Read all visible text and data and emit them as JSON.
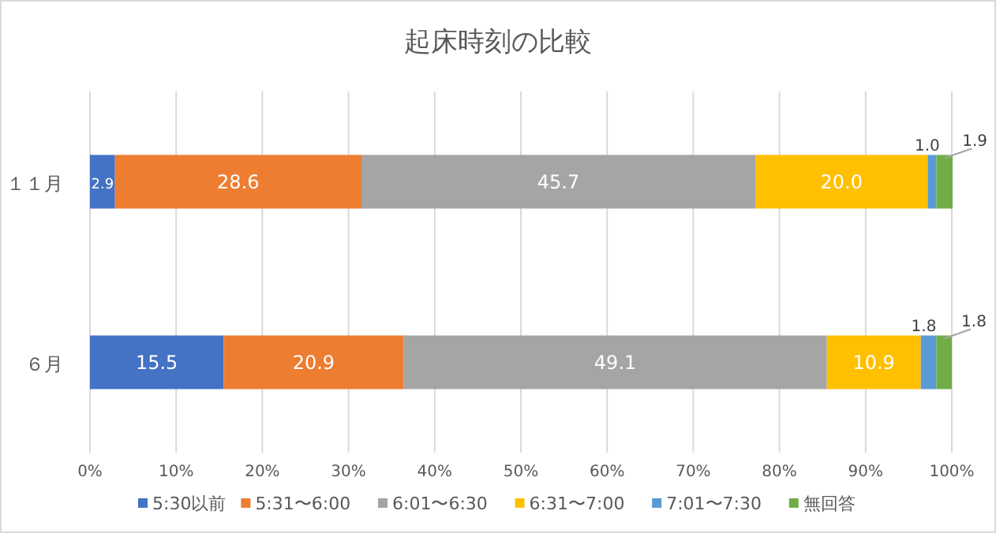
{
  "chart_data": {
    "type": "bar",
    "orientation": "horizontal",
    "stacked": true,
    "title": "起床時刻の比較",
    "categories": [
      "１１月",
      "６月"
    ],
    "series": [
      {
        "name": "5:30以前",
        "color": "#4472c4",
        "values": [
          2.9,
          15.5
        ],
        "value_labels": [
          "2.9",
          "15.5"
        ]
      },
      {
        "name": "5:31〜6:00",
        "color": "#ed7d31",
        "values": [
          28.6,
          20.9
        ],
        "value_labels": [
          "28.6",
          "20.9"
        ]
      },
      {
        "name": "6:01〜6:30",
        "color": "#a5a5a5",
        "values": [
          45.7,
          49.1
        ],
        "value_labels": [
          "45.7",
          "49.1"
        ]
      },
      {
        "name": "6:31〜7:00",
        "color": "#ffc000",
        "values": [
          20.0,
          10.9
        ],
        "value_labels": [
          "20.0",
          "10.9"
        ]
      },
      {
        "name": "7:01〜7:30",
        "color": "#5b9bd5",
        "values": [
          1.0,
          1.8
        ],
        "value_labels": [
          "1.0",
          "1.8"
        ]
      },
      {
        "name": "無回答",
        "color": "#70ad47",
        "values": [
          1.9,
          1.8
        ],
        "value_labels": [
          "1.9",
          "1.8"
        ]
      }
    ],
    "xlim": [
      0,
      100
    ],
    "xticks": [
      {
        "value": 0,
        "label": "0%"
      },
      {
        "value": 10,
        "label": "10%"
      },
      {
        "value": 20,
        "label": "20%"
      },
      {
        "value": 30,
        "label": "30%"
      },
      {
        "value": 40,
        "label": "40%"
      },
      {
        "value": 50,
        "label": "50%"
      },
      {
        "value": 60,
        "label": "60%"
      },
      {
        "value": 70,
        "label": "70%"
      },
      {
        "value": 80,
        "label": "80%"
      },
      {
        "value": 90,
        "label": "90%"
      },
      {
        "value": 100,
        "label": "100%"
      }
    ],
    "grid": "x",
    "legend": "bottom"
  }
}
